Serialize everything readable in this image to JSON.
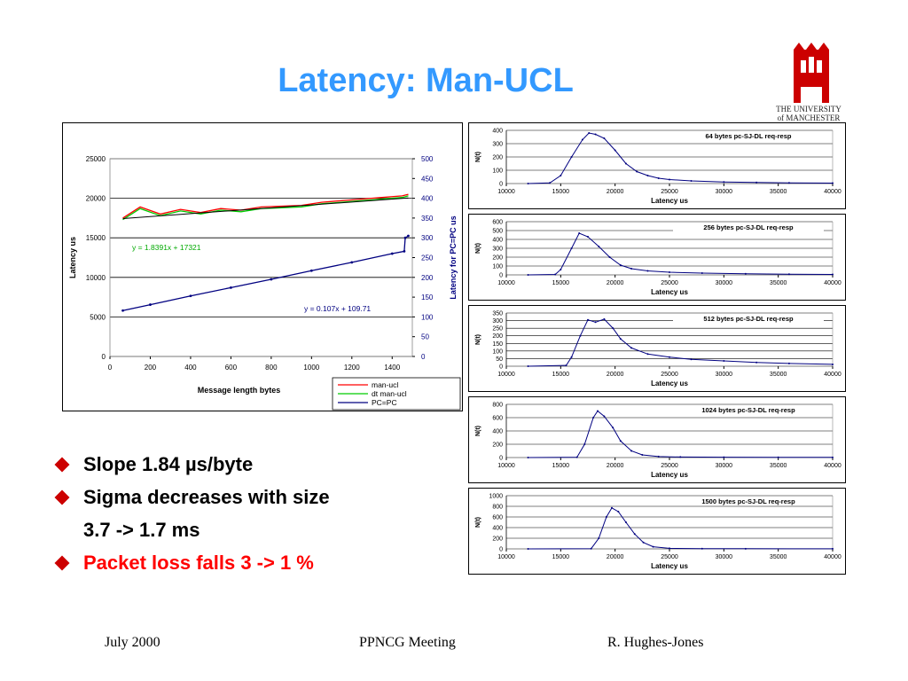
{
  "slide": {
    "title": "Latency: Man-UCL",
    "logo_text": [
      "THE UNIVERSITY",
      "of MANCHESTER"
    ],
    "bullets": [
      {
        "text": "Slope 1.84 µs/byte"
      },
      {
        "text": "Sigma decreases with size"
      },
      {
        "text": "3.7 -> 1.7 ms"
      },
      {
        "text": "Packet loss falls 3 -> 1 %"
      }
    ],
    "footer": {
      "left": "July 2000",
      "center": "PPNCG Meeting",
      "right": "R. Hughes-Jones"
    }
  },
  "colors": {
    "title": "#3399ff",
    "bullet_marker": "#cc0000",
    "highlight": "#ff0000",
    "series_man_ucl": "#ff0000",
    "series_dt": "#00cc00",
    "series_pc": "#000080",
    "histogram": "#000080"
  },
  "chart_data": [
    {
      "type": "line",
      "xlabel": "Message length bytes",
      "ylabel": "Latency us",
      "y2label": "Latency for PC=PC us",
      "xlim": [
        0,
        1500
      ],
      "ylim": [
        0,
        25000
      ],
      "y2lim": [
        0,
        500
      ],
      "xticks": [
        0,
        200,
        400,
        600,
        800,
        1000,
        1200,
        1400
      ],
      "yticks": [
        0,
        5000,
        10000,
        15000,
        20000,
        25000
      ],
      "y2ticks": [
        0,
        50,
        100,
        150,
        200,
        250,
        300,
        350,
        400,
        450,
        500
      ],
      "grid": true,
      "legend_position": "bottom-right",
      "series": [
        {
          "name": "man-ucl",
          "axis": "left",
          "x": [
            64,
            150,
            250,
            350,
            450,
            550,
            650,
            750,
            850,
            950,
            1050,
            1150,
            1250,
            1350,
            1450,
            1480
          ],
          "y": [
            17500,
            18900,
            18000,
            18600,
            18200,
            18700,
            18500,
            18900,
            19000,
            19100,
            19500,
            19700,
            19900,
            20100,
            20300,
            20500
          ]
        },
        {
          "name": "dt man-ucl",
          "axis": "left",
          "x": [
            64,
            150,
            250,
            350,
            450,
            550,
            650,
            750,
            850,
            950,
            1050,
            1150,
            1250,
            1350,
            1450,
            1480
          ],
          "y": [
            17300,
            18700,
            17800,
            18400,
            18000,
            18500,
            18300,
            18700,
            18800,
            18900,
            19300,
            19500,
            19700,
            19900,
            20100,
            20300
          ]
        },
        {
          "name": "PC=PC",
          "axis": "right",
          "x": [
            64,
            200,
            400,
            600,
            800,
            1000,
            1200,
            1400,
            1460,
            1465,
            1480
          ],
          "y": [
            116,
            131,
            153,
            174,
            195,
            217,
            238,
            260,
            266,
            300,
            305
          ]
        }
      ],
      "annotations": [
        "y = 1.8391x + 17321",
        "y = 0.107x + 109.71"
      ]
    },
    {
      "type": "line",
      "title": "64 bytes pc-SJ-DL req-resp",
      "xlabel": "Latency us",
      "ylabel": "N(t)",
      "xlim": [
        10000,
        40000
      ],
      "ylim": [
        0,
        400
      ],
      "xticks": [
        10000,
        15000,
        20000,
        25000,
        30000,
        35000,
        40000
      ],
      "yticks": [
        0,
        100,
        200,
        300,
        400
      ],
      "x": [
        12000,
        14000,
        15000,
        16000,
        17000,
        17600,
        18200,
        19000,
        20000,
        21000,
        22000,
        23000,
        24000,
        25000,
        27000,
        30000,
        33000,
        36000,
        40000
      ],
      "y": [
        0,
        5,
        60,
        200,
        330,
        380,
        370,
        340,
        250,
        150,
        90,
        60,
        40,
        30,
        20,
        12,
        8,
        5,
        3
      ]
    },
    {
      "type": "line",
      "title": "256 bytes pc-SJ-DL req-resp",
      "xlabel": "Latency us",
      "ylabel": "N(t)",
      "xlim": [
        10000,
        40000
      ],
      "ylim": [
        0,
        600
      ],
      "xticks": [
        10000,
        15000,
        20000,
        25000,
        30000,
        35000,
        40000
      ],
      "yticks": [
        0,
        100,
        200,
        300,
        400,
        500,
        600
      ],
      "x": [
        12000,
        14500,
        15000,
        16000,
        16700,
        17500,
        18500,
        19500,
        20500,
        21500,
        23000,
        25000,
        28000,
        32000,
        36000,
        40000
      ],
      "y": [
        0,
        5,
        60,
        300,
        470,
        430,
        320,
        200,
        110,
        70,
        45,
        30,
        20,
        12,
        8,
        5
      ]
    },
    {
      "type": "line",
      "title": "512 bytes pc-SJ-DL req-resp",
      "xlabel": "Latency us",
      "ylabel": "N(t)",
      "xlim": [
        10000,
        40000
      ],
      "ylim": [
        0,
        350
      ],
      "xticks": [
        10000,
        15000,
        20000,
        25000,
        30000,
        35000,
        40000
      ],
      "yticks": [
        0,
        50,
        100,
        150,
        200,
        250,
        300,
        350
      ],
      "x": [
        12000,
        15500,
        16000,
        16800,
        17500,
        18200,
        19000,
        19800,
        20500,
        21500,
        23000,
        25000,
        27000,
        30000,
        33000,
        36000,
        40000
      ],
      "y": [
        0,
        5,
        60,
        200,
        305,
        290,
        310,
        250,
        180,
        120,
        80,
        60,
        45,
        35,
        25,
        18,
        12
      ]
    },
    {
      "type": "line",
      "title": "1024 bytes pc-SJ-DL  req-resp",
      "xlabel": "Latency us",
      "ylabel": "N(t)",
      "xlim": [
        10000,
        40000
      ],
      "ylim": [
        0,
        800
      ],
      "xticks": [
        10000,
        15000,
        20000,
        25000,
        30000,
        35000,
        40000
      ],
      "yticks": [
        0,
        200,
        400,
        600,
        800
      ],
      "x": [
        12000,
        16500,
        17200,
        18000,
        18400,
        19000,
        19800,
        20500,
        21500,
        22500,
        24000,
        26000,
        30000,
        35000,
        40000
      ],
      "y": [
        0,
        5,
        200,
        600,
        700,
        620,
        450,
        250,
        100,
        40,
        15,
        8,
        5,
        3,
        2
      ]
    },
    {
      "type": "line",
      "title": "1500 bytes pc-SJ-DL  req-resp",
      "xlabel": "Latency us",
      "ylabel": "N(t)",
      "xlim": [
        10000,
        40000
      ],
      "ylim": [
        0,
        1000
      ],
      "xticks": [
        10000,
        15000,
        20000,
        25000,
        30000,
        35000,
        40000
      ],
      "yticks": [
        0,
        200,
        400,
        600,
        800,
        1000
      ],
      "x": [
        12000,
        17800,
        18500,
        19200,
        19700,
        20300,
        21000,
        21800,
        22600,
        23500,
        25000,
        28000,
        32000,
        40000
      ],
      "y": [
        0,
        5,
        200,
        600,
        770,
        700,
        500,
        280,
        120,
        40,
        10,
        5,
        3,
        2
      ]
    }
  ]
}
